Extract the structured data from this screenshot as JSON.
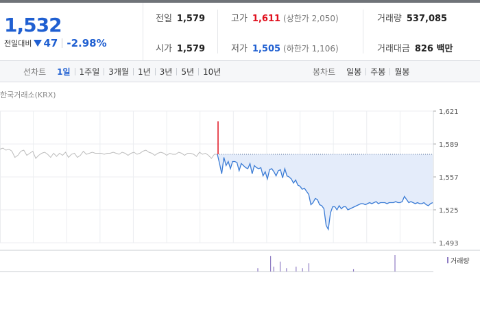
{
  "summary": {
    "price": "1,532",
    "change_label": "전일대비",
    "change_value": "47",
    "change_pct": "-2.98%",
    "prev_close_label": "전일",
    "prev_close": "1,579",
    "high_label": "고가",
    "high": "1,611",
    "upper_limit": "(상한가 2,050)",
    "volume_label": "거래량",
    "volume": "537,085",
    "open_label": "시가",
    "open": "1,579",
    "low_label": "저가",
    "low": "1,505",
    "lower_limit": "(하한가 1,106)",
    "amount_label": "거래대금",
    "amount": "826 백만"
  },
  "tabs": {
    "line_title": "선차트",
    "line_tabs": [
      "1일",
      "1주일",
      "3개월",
      "1년",
      "3년",
      "5년",
      "10년"
    ],
    "line_active": 0,
    "candle_title": "봉차트",
    "candle_tabs": [
      "일봉",
      "주봉",
      "월봉"
    ]
  },
  "chart": {
    "exchange_label": "한국거래소(KRX)",
    "volume_legend": "거래량"
  },
  "colors": {
    "accent_blue": "#1f5fd1",
    "up_red": "#e0101e",
    "line_blue": "#3a7bd5",
    "fill_blue": "#e4ecfa",
    "prev_gray": "#bbbbbb",
    "volume_purple": "#8e7cc3"
  },
  "chart_data": {
    "type": "line",
    "ylim": [
      1493,
      1621
    ],
    "yticks": [
      "1,621",
      "1,589",
      "1,557",
      "1,525",
      "1,493"
    ],
    "ytick_values": [
      1621,
      1589,
      1557,
      1525,
      1493
    ],
    "reference_line": 1579,
    "series": [
      {
        "values": [
          1584,
          1585,
          1583,
          1584,
          1582,
          1576,
          1578,
          1582,
          1583,
          1578,
          1580,
          1582,
          1575,
          1578,
          1580,
          1581,
          1579,
          1576,
          1580,
          1577,
          1580,
          1578,
          1581,
          1576,
          1579,
          1580,
          1576,
          1578,
          1582,
          1579,
          1580,
          1581,
          1580,
          1580,
          1580,
          1579,
          1580,
          1580,
          1581,
          1580,
          1579,
          1581,
          1580,
          1578,
          1580,
          1581,
          1579,
          1580,
          1582,
          1583,
          1581,
          1580,
          1578,
          1580,
          1581,
          1580,
          1578,
          1580,
          1579,
          1579,
          1581,
          1580,
          1578,
          1580,
          1580,
          1579,
          1577,
          1581,
          1579,
          1580,
          1578,
          1575,
          1579,
          1579
        ]
      },
      {
        "values": [
          1579,
          1570,
          1560,
          1576,
          1568,
          1572,
          1565,
          1572,
          1572,
          1571,
          1563,
          1570,
          1568,
          1566,
          1565,
          1570,
          1560,
          1568,
          1566,
          1565,
          1566,
          1558,
          1562,
          1555,
          1564,
          1565,
          1562,
          1558,
          1563,
          1564,
          1556,
          1565,
          1558,
          1557,
          1555,
          1551,
          1554,
          1549,
          1548,
          1545,
          1546,
          1543,
          1540,
          1530,
          1532,
          1536,
          1535,
          1530,
          1529,
          1526,
          1510,
          1506,
          1522,
          1528,
          1528,
          1525,
          1529,
          1526,
          1528,
          1528,
          1525,
          1526,
          1527,
          1528,
          1529,
          1530,
          1531,
          1531,
          1530,
          1531,
          1532,
          1531,
          1532,
          1533,
          1531,
          1532,
          1532,
          1532,
          1531,
          1532,
          1532,
          1532,
          1533,
          1532,
          1532,
          1533,
          1538,
          1535,
          1532,
          1533,
          1532,
          1531,
          1532,
          1531,
          1531,
          1532,
          1530,
          1529,
          1531,
          1532
        ]
      }
    ],
    "volume": [
      0.2,
      0.0,
      0.0,
      0.0,
      0.95,
      0.3,
      0.0,
      0.6,
      0.0,
      0.2,
      0.0,
      0.0,
      0.3,
      0.0,
      0.2,
      0.0,
      0.5,
      0.0,
      0.0,
      0.0,
      0.0,
      0.0,
      0.0,
      0.0,
      0.0,
      0.0,
      0.0,
      0.0,
      0.0,
      0.0,
      0.15,
      0.0,
      0.0,
      0.0,
      0.0,
      0.0,
      0.0,
      0.0,
      0.0,
      0.0,
      0.0,
      0.0,
      0.0,
      1.0
    ]
  }
}
